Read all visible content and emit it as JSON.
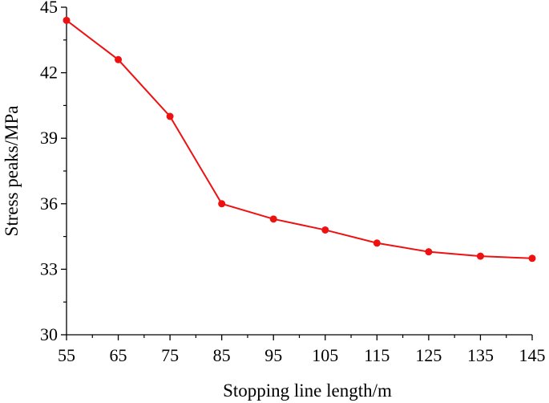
{
  "chart_data": {
    "type": "line",
    "title": "",
    "xlabel": "Stopping line length/m",
    "ylabel": "Stress peaks/MPa",
    "xlim": [
      55,
      145
    ],
    "ylim": [
      30,
      45
    ],
    "x_ticks": [
      55,
      65,
      75,
      85,
      95,
      105,
      115,
      125,
      135,
      145
    ],
    "y_ticks": [
      30,
      33,
      36,
      39,
      42,
      45
    ],
    "grid": false,
    "legend": "none",
    "series": [
      {
        "color": "#ee1111",
        "x": [
          55,
          65,
          75,
          85,
          95,
          105,
          115,
          125,
          135,
          145
        ],
        "values": [
          44.4,
          42.6,
          40.0,
          36.0,
          35.3,
          34.8,
          34.2,
          33.8,
          33.6,
          33.5
        ]
      }
    ]
  }
}
